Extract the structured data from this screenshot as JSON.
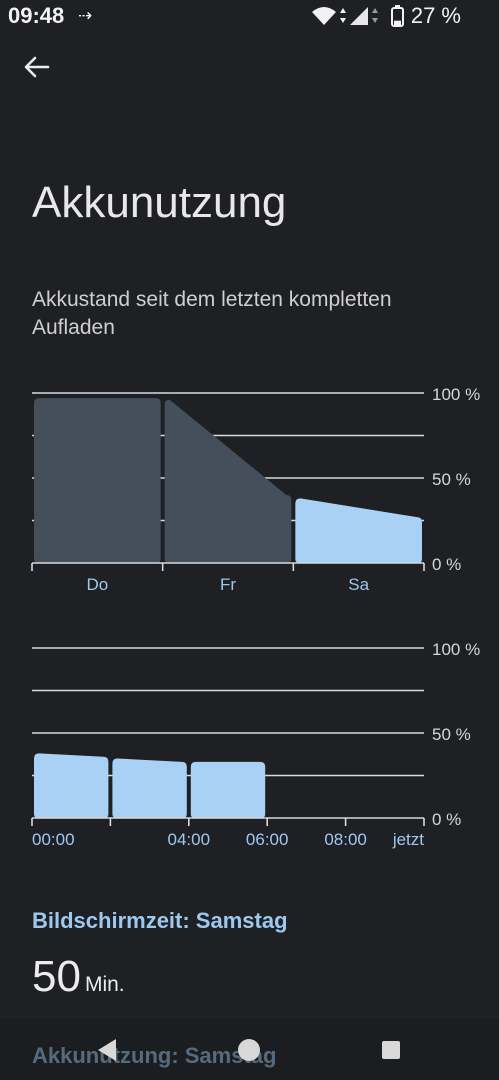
{
  "status_bar": {
    "time": "09:48",
    "battery_percent_text": "27 %",
    "battery_level": 0.27
  },
  "page": {
    "title": "Akkunutzung",
    "subtitle": "Akkustand seit dem letzten kompletten Aufladen"
  },
  "chart_data": [
    {
      "type": "area",
      "title": "",
      "y_ticks": [
        "100 %",
        "50 %",
        "0 %"
      ],
      "ylim": [
        0,
        100
      ],
      "categories": [
        "Do",
        "Fr",
        "Sa"
      ],
      "series": [
        {
          "values": [
            [
              97,
              97
            ],
            [
              96,
              40
            ],
            [
              38,
              27
            ]
          ]
        }
      ],
      "highlighted_category": "Sa",
      "colors": {
        "highlight": "#a8d1f5",
        "dim": "#444f5b",
        "grid": "#d9d9d9",
        "label": "#9ec9ee"
      }
    },
    {
      "type": "area",
      "title": "",
      "y_ticks": [
        "100 %",
        "50 %",
        "0 %"
      ],
      "ylim": [
        0,
        100
      ],
      "x_labels": [
        "00:00",
        "04:00",
        "06:00",
        "08:00",
        "jetzt"
      ],
      "series": [
        {
          "values": [
            [
              38,
              36
            ],
            [
              35,
              33
            ],
            [
              33,
              33
            ]
          ]
        }
      ],
      "colors": {
        "bar": "#a8d1f5",
        "grid": "#d9d9d9",
        "label": "#9ec9ee"
      }
    }
  ],
  "screen_time": {
    "label": "Bildschirmzeit: Samstag",
    "value": "50",
    "unit": "Min."
  },
  "usage_label": "Akkunutzung: Samstag"
}
